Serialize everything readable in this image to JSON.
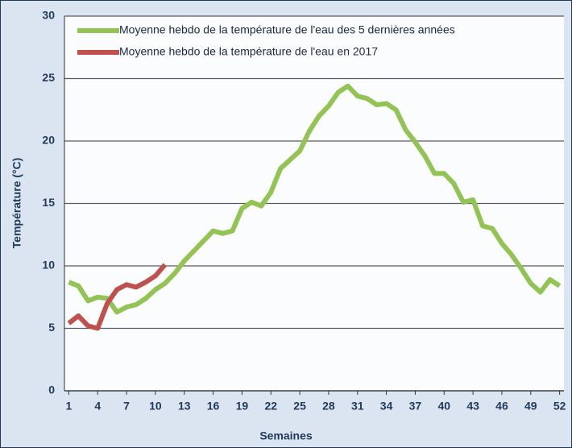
{
  "chart_data": {
    "type": "line",
    "xlabel": "Semaines",
    "ylabel": "Température (°C)",
    "x": [
      1,
      2,
      3,
      4,
      5,
      6,
      7,
      8,
      9,
      10,
      11,
      12,
      13,
      14,
      15,
      16,
      17,
      18,
      19,
      20,
      21,
      22,
      23,
      24,
      25,
      26,
      27,
      28,
      29,
      30,
      31,
      32,
      33,
      34,
      35,
      36,
      37,
      38,
      39,
      40,
      41,
      42,
      43,
      44,
      45,
      46,
      47,
      48,
      49,
      50,
      51,
      52
    ],
    "series": [
      {
        "name": "Moyenne hebdo de la température de l'eau des 5 dernières années",
        "color": "#92c353",
        "values": [
          8.7,
          8.4,
          7.2,
          7.5,
          7.4,
          6.3,
          6.7,
          6.9,
          7.4,
          8.1,
          8.6,
          9.4,
          10.4,
          11.2,
          12.0,
          12.8,
          12.6,
          12.8,
          14.6,
          15.1,
          14.8,
          15.9,
          17.8,
          18.5,
          19.2,
          20.8,
          22.0,
          22.8,
          23.9,
          24.4,
          23.6,
          23.4,
          22.9,
          23.0,
          22.5,
          20.9,
          19.9,
          18.8,
          17.4,
          17.4,
          16.6,
          15.1,
          15.3,
          13.2,
          13.0,
          11.8,
          10.9,
          9.8,
          8.6,
          7.9,
          8.9,
          8.4
        ]
      },
      {
        "name": "Moyenne hebdo de la température de l'eau en 2017",
        "color": "#c0504d",
        "values": [
          5.4,
          6.0,
          5.2,
          5.0,
          7.0,
          8.1,
          8.5,
          8.3,
          8.7,
          9.2,
          10.1,
          null,
          null,
          null,
          null,
          null,
          null,
          null,
          null,
          null,
          null,
          null,
          null,
          null,
          null,
          null,
          null,
          null,
          null,
          null,
          null,
          null,
          null,
          null,
          null,
          null,
          null,
          null,
          null,
          null,
          null,
          null,
          null,
          null,
          null,
          null,
          null,
          null,
          null,
          null,
          null,
          null
        ]
      }
    ],
    "xlim": [
      0.55,
      52.45
    ],
    "xticks": [
      1,
      4,
      7,
      10,
      13,
      16,
      19,
      22,
      25,
      28,
      31,
      34,
      37,
      40,
      43,
      46,
      49,
      52
    ],
    "ylim": [
      0,
      30
    ],
    "yticks": [
      0,
      5,
      10,
      15,
      20,
      25,
      30
    ],
    "grid": true,
    "legend": "upper left"
  }
}
